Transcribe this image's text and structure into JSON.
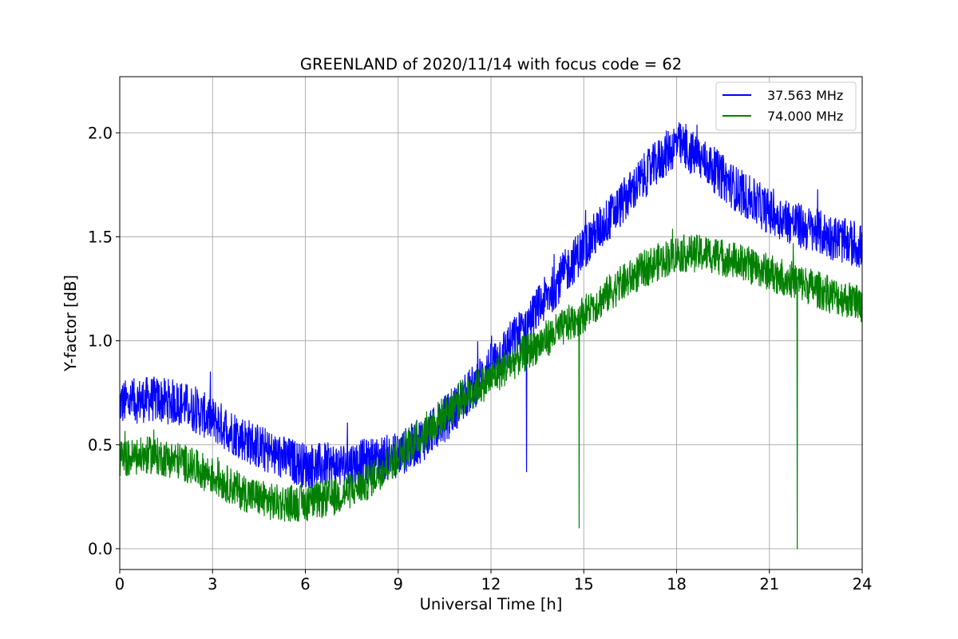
{
  "chart_data": {
    "type": "line",
    "title": "GREENLAND of 2020/11/14 with focus code = 62",
    "xlabel": "Universal Time [h]",
    "ylabel": "Y-factor [dB]",
    "xlim": [
      0,
      24
    ],
    "ylim": [
      -0.1,
      2.27
    ],
    "xticks": [
      "0",
      "3",
      "6",
      "9",
      "12",
      "15",
      "18",
      "21",
      "24"
    ],
    "yticks": [
      "0.0",
      "0.5",
      "1.0",
      "1.5",
      "2.0"
    ],
    "grid": true,
    "legend_position": "top-right",
    "series": [
      {
        "name": "37.563 MHz",
        "color": "#0000ff",
        "noise_amplitude": 0.11,
        "x": [
          0,
          1,
          2,
          3,
          4,
          5,
          6,
          7,
          8,
          9,
          10,
          11,
          12,
          13,
          14,
          15,
          16,
          17,
          18,
          19,
          20,
          21,
          22,
          23,
          24
        ],
        "y": [
          0.7,
          0.72,
          0.7,
          0.62,
          0.53,
          0.45,
          0.4,
          0.4,
          0.42,
          0.45,
          0.55,
          0.7,
          0.88,
          1.05,
          1.25,
          1.45,
          1.62,
          1.8,
          1.95,
          1.85,
          1.72,
          1.62,
          1.55,
          1.5,
          1.45
        ]
      },
      {
        "name": "74.000 MHz",
        "color": "#008000",
        "noise_amplitude": 0.09,
        "x": [
          0,
          1,
          2,
          3,
          4,
          5,
          6,
          7,
          8,
          9,
          10,
          11,
          12,
          13,
          14,
          15,
          16,
          17,
          18,
          19,
          20,
          21,
          22,
          23,
          24
        ],
        "y": [
          0.43,
          0.45,
          0.42,
          0.35,
          0.27,
          0.22,
          0.22,
          0.25,
          0.32,
          0.45,
          0.58,
          0.72,
          0.82,
          0.93,
          1.03,
          1.13,
          1.25,
          1.35,
          1.42,
          1.42,
          1.38,
          1.33,
          1.28,
          1.22,
          1.18
        ]
      }
    ],
    "dips": [
      {
        "series": 0,
        "x": 13.15,
        "y": 0.37
      },
      {
        "series": 1,
        "x": 14.85,
        "y": 0.1
      },
      {
        "series": 1,
        "x": 21.9,
        "y": 0.0
      }
    ]
  }
}
